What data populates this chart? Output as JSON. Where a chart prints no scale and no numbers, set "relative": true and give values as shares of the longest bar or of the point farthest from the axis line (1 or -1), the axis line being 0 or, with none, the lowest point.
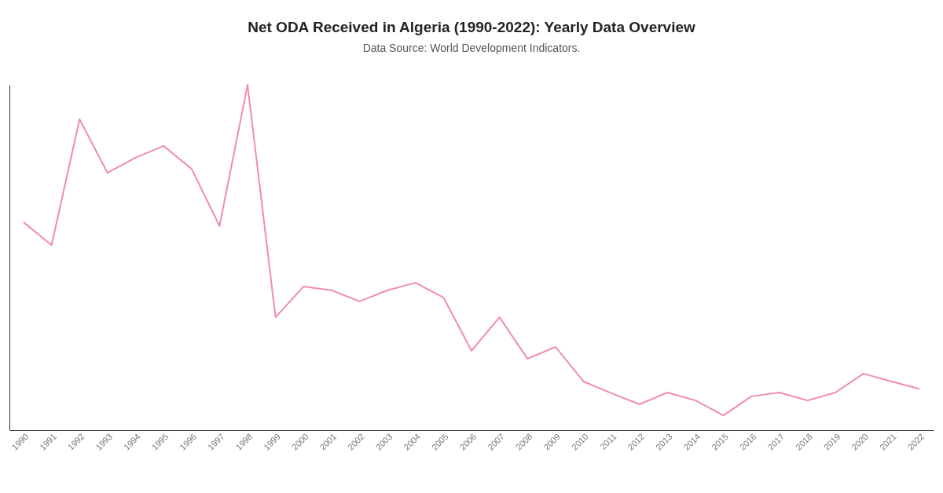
{
  "chart_data": {
    "type": "line",
    "title": "Net ODA Received in Algeria (1990-2022): Yearly Data Overview",
    "subtitle": "Data Source: World Development Indicators.",
    "relative": true,
    "color": "#f08bb4",
    "categories": [
      "1990",
      "1991",
      "1992",
      "1993",
      "1994",
      "1995",
      "1996",
      "1997",
      "1998",
      "1999",
      "2000",
      "2001",
      "2002",
      "2003",
      "2004",
      "2005",
      "2006",
      "2007",
      "2008",
      "2009",
      "2010",
      "2011",
      "2012",
      "2013",
      "2014",
      "2015",
      "2016",
      "2017",
      "2018",
      "2019",
      "2020",
      "2021",
      "2022"
    ],
    "values": [
      0.602,
      0.536,
      0.9,
      0.745,
      0.789,
      0.823,
      0.757,
      0.591,
      1,
      0.327,
      0.416,
      0.405,
      0.373,
      0.405,
      0.427,
      0.384,
      0.23,
      0.327,
      0.207,
      0.241,
      0.141,
      0.107,
      0.075,
      0.109,
      0.086,
      0.043,
      0.098,
      0.109,
      0.086,
      0.109,
      0.164,
      0.141,
      0.12
    ]
  }
}
